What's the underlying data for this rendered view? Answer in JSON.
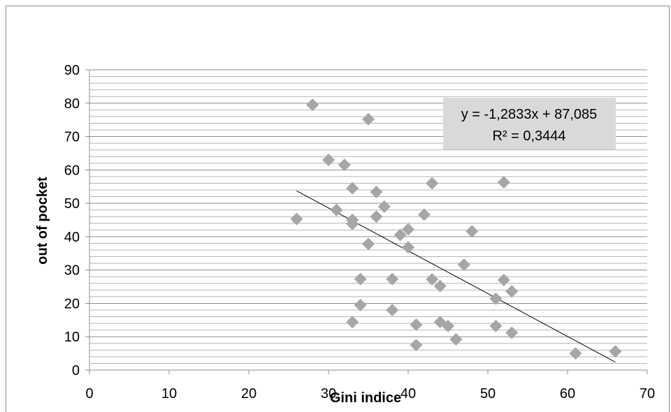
{
  "chart_data": {
    "type": "scatter",
    "xlabel": "Gini indice",
    "ylabel": "out of pocket",
    "xlim": [
      0,
      70
    ],
    "ylim": [
      0,
      90
    ],
    "x_ticks": [
      "0",
      "10",
      "20",
      "30",
      "40",
      "50",
      "60",
      "70"
    ],
    "y_ticks": [
      "0",
      "10",
      "20",
      "30",
      "40",
      "50",
      "60",
      "70",
      "80",
      "90"
    ],
    "grid": true,
    "marker_color": "#a6a6a6",
    "trendline": {
      "slope": -1.2833,
      "intercept": 87.085,
      "x_range": [
        26,
        66
      ],
      "equation_label": "y = -1,2833x + 87,085",
      "r2_label": "R² = 0,3444",
      "label_background": "#d9d9d9"
    },
    "points": [
      {
        "x": 26,
        "y": 45.3
      },
      {
        "x": 28,
        "y": 79.5
      },
      {
        "x": 30,
        "y": 63
      },
      {
        "x": 31,
        "y": 48
      },
      {
        "x": 32,
        "y": 61.5
      },
      {
        "x": 33,
        "y": 54.5
      },
      {
        "x": 33,
        "y": 45
      },
      {
        "x": 33,
        "y": 43.8
      },
      {
        "x": 33,
        "y": 14.4
      },
      {
        "x": 34,
        "y": 27.3
      },
      {
        "x": 34,
        "y": 19.5
      },
      {
        "x": 35,
        "y": 75.2
      },
      {
        "x": 35,
        "y": 37.8
      },
      {
        "x": 36,
        "y": 53.4
      },
      {
        "x": 36,
        "y": 46
      },
      {
        "x": 37,
        "y": 49
      },
      {
        "x": 38,
        "y": 27.3
      },
      {
        "x": 38,
        "y": 18
      },
      {
        "x": 39,
        "y": 40.5
      },
      {
        "x": 40,
        "y": 42.2
      },
      {
        "x": 40,
        "y": 36.8
      },
      {
        "x": 41,
        "y": 13.6
      },
      {
        "x": 41,
        "y": 7.5
      },
      {
        "x": 42,
        "y": 46.6
      },
      {
        "x": 43,
        "y": 56
      },
      {
        "x": 43,
        "y": 27.2
      },
      {
        "x": 44,
        "y": 25.2
      },
      {
        "x": 44,
        "y": 14.4
      },
      {
        "x": 45,
        "y": 13.2
      },
      {
        "x": 46,
        "y": 9.2
      },
      {
        "x": 47,
        "y": 31.6
      },
      {
        "x": 48,
        "y": 41.6
      },
      {
        "x": 51,
        "y": 21.4
      },
      {
        "x": 51,
        "y": 13.2
      },
      {
        "x": 52,
        "y": 56.3
      },
      {
        "x": 52,
        "y": 27
      },
      {
        "x": 53,
        "y": 23.6
      },
      {
        "x": 53,
        "y": 11.2
      },
      {
        "x": 61,
        "y": 5
      },
      {
        "x": 66,
        "y": 5.6
      }
    ]
  }
}
